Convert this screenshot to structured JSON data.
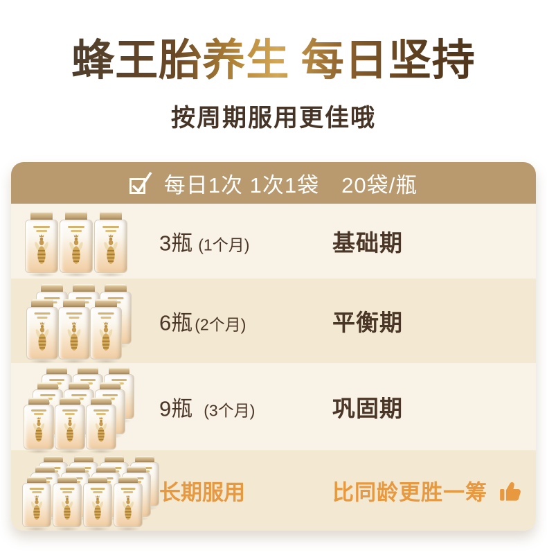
{
  "title": "蜂王胎养生 每日坚持",
  "subtitle": "按周期服用更佳哦",
  "plan_card": {
    "header": {
      "checkbox_icon": "checked-checkbox",
      "text": "每日1次 1次1袋　20袋/瓶"
    },
    "rows": [
      {
        "quantity": "3瓶",
        "duration": "(1个月)",
        "phase": "基础期",
        "bottle_count": 3,
        "bottle_layout": [
          3
        ]
      },
      {
        "quantity": "6瓶",
        "duration": "(2个月)",
        "phase": "平衡期",
        "bottle_count": 6,
        "bottle_layout": [
          3,
          3
        ]
      },
      {
        "quantity": "9瓶",
        "duration": "(3个月)",
        "phase": "巩固期",
        "bottle_count": 9,
        "bottle_layout": [
          3,
          3,
          3
        ]
      },
      {
        "quantity": "长期服用",
        "duration": "",
        "phase": "比同龄更胜一筹",
        "bottle_count": 12,
        "bottle_layout": [
          4,
          4,
          4
        ],
        "thumb_icon": "thumbs-up"
      }
    ]
  },
  "colors": {
    "header_bg": "#b9996e",
    "row_light": "#f8f3e6",
    "row_dark": "#f3e9d3",
    "text_brown": "#4a3626",
    "accent_orange": "#e8993f",
    "title_dark": "#55412a",
    "title_gold": "#d2a755",
    "bottle_gold": "#c59a4e"
  }
}
